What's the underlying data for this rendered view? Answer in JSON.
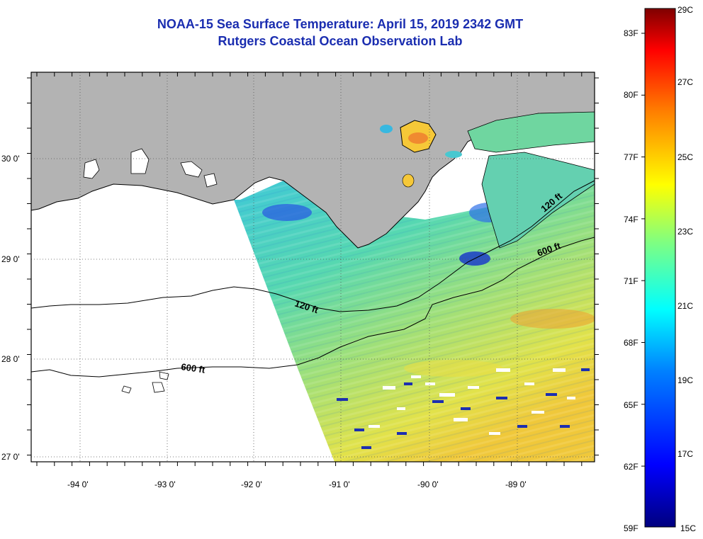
{
  "header": {
    "title_line1": "NOAA-15 Sea Surface Temperature:  April 15, 2019 2342 GMT",
    "title_line2": "Rutgers Coastal Ocean Observation Lab"
  },
  "map": {
    "lon_labels": [
      "-94 0'",
      "-93 0'",
      "-92 0'",
      "-91 0'",
      "-90 0'",
      "-89 0'"
    ],
    "lat_labels": [
      "30 0'",
      "29 0'",
      "28 0'",
      "27 0'"
    ],
    "contours": [
      {
        "label": "120 ft"
      },
      {
        "label": "600 ft"
      },
      {
        "label": "120 ft"
      },
      {
        "label": "600 ft"
      }
    ],
    "colors": {
      "land": "#b3b3b3",
      "ocean_nodata": "#ffffff"
    }
  },
  "colorbar": {
    "fahrenheit_labels": [
      "83F",
      "80F",
      "77F",
      "74F",
      "71F",
      "68F",
      "65F",
      "62F",
      "59F"
    ],
    "celsius_labels": [
      "29C",
      "27C",
      "25C",
      "23C",
      "21C",
      "19C",
      "17C",
      "15C"
    ],
    "range_c": [
      15,
      29
    ],
    "colors": [
      "#00007f",
      "#0000ff",
      "#0080ff",
      "#00ffff",
      "#80ff80",
      "#ffff00",
      "#ff8000",
      "#ff0000",
      "#7f0000"
    ]
  }
}
